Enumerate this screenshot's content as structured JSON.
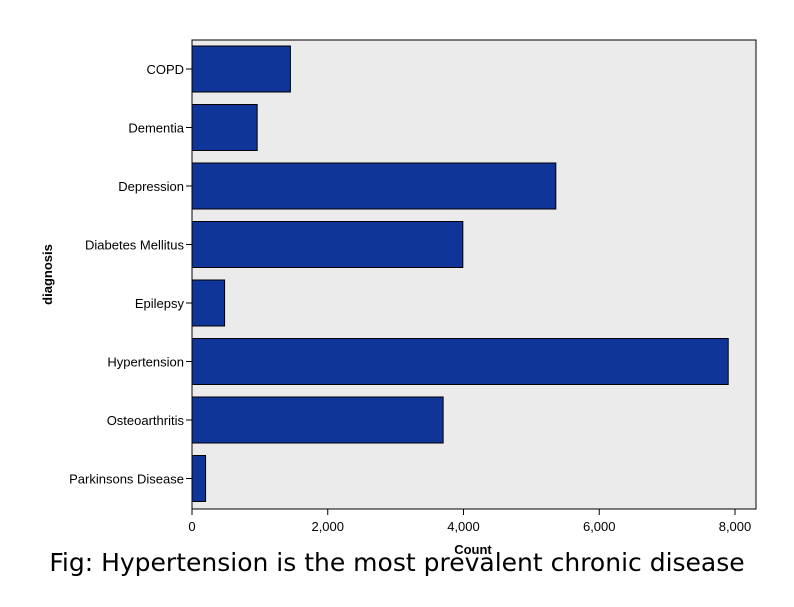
{
  "caption": "Fig: Hypertension is the most prevalent chronic disease",
  "chart_data": {
    "type": "bar",
    "orientation": "horizontal",
    "categories": [
      "COPD",
      "Dementia",
      "Depression",
      "Diabetes Mellitus",
      "Epilepsy",
      "Hypertension",
      "Osteoarthritis",
      "Parkinsons Disease"
    ],
    "values": [
      1450,
      960,
      5360,
      3990,
      480,
      7900,
      3700,
      200
    ],
    "xlabel": "Count",
    "ylabel": "diagnosis",
    "xlim": [
      0,
      8300
    ],
    "x_ticks": [
      0,
      2000,
      4000,
      6000,
      8000
    ],
    "x_tick_labels": [
      "0",
      "2,000",
      "4,000",
      "6,000",
      "8,000"
    ],
    "grid": false,
    "colors": {
      "bar_fill": "#0f3598",
      "bar_stroke": "#000000",
      "plot_background": "#ebebeb"
    }
  }
}
